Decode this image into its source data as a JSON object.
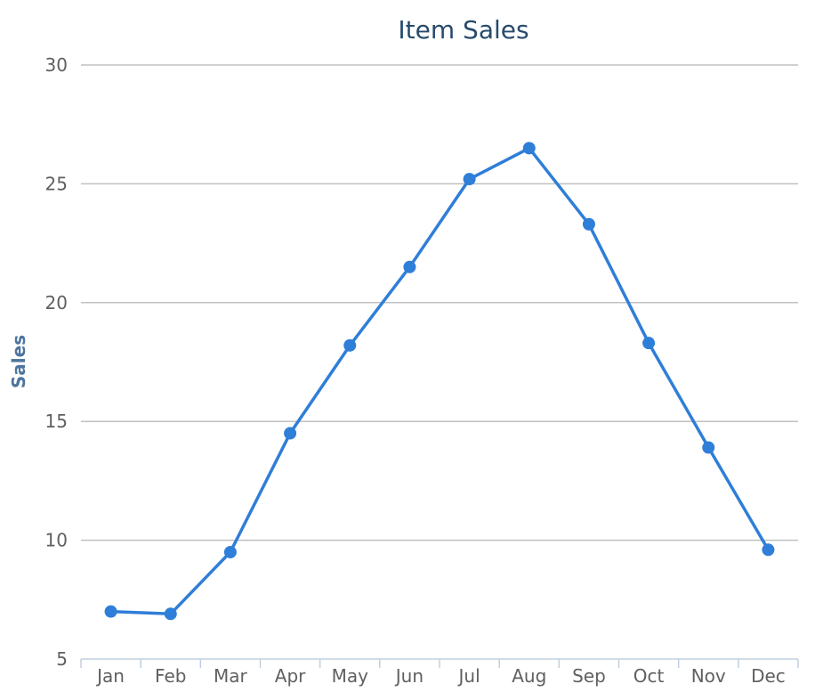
{
  "chart_data": {
    "type": "line",
    "title": "Item Sales",
    "ylabel": "Sales",
    "xlabel": "",
    "categories": [
      "Jan",
      "Feb",
      "Mar",
      "Apr",
      "May",
      "Jun",
      "Jul",
      "Aug",
      "Sep",
      "Oct",
      "Nov",
      "Dec"
    ],
    "series": [
      {
        "values": [
          7.0,
          6.9,
          9.5,
          14.5,
          18.2,
          21.5,
          25.2,
          26.5,
          23.3,
          18.3,
          13.9,
          9.6
        ],
        "color": "#2f7ed8"
      }
    ],
    "ylim": [
      5,
      30
    ],
    "yticks": [
      5,
      10,
      15,
      20,
      25,
      30
    ],
    "grid": true,
    "legend": "none"
  }
}
